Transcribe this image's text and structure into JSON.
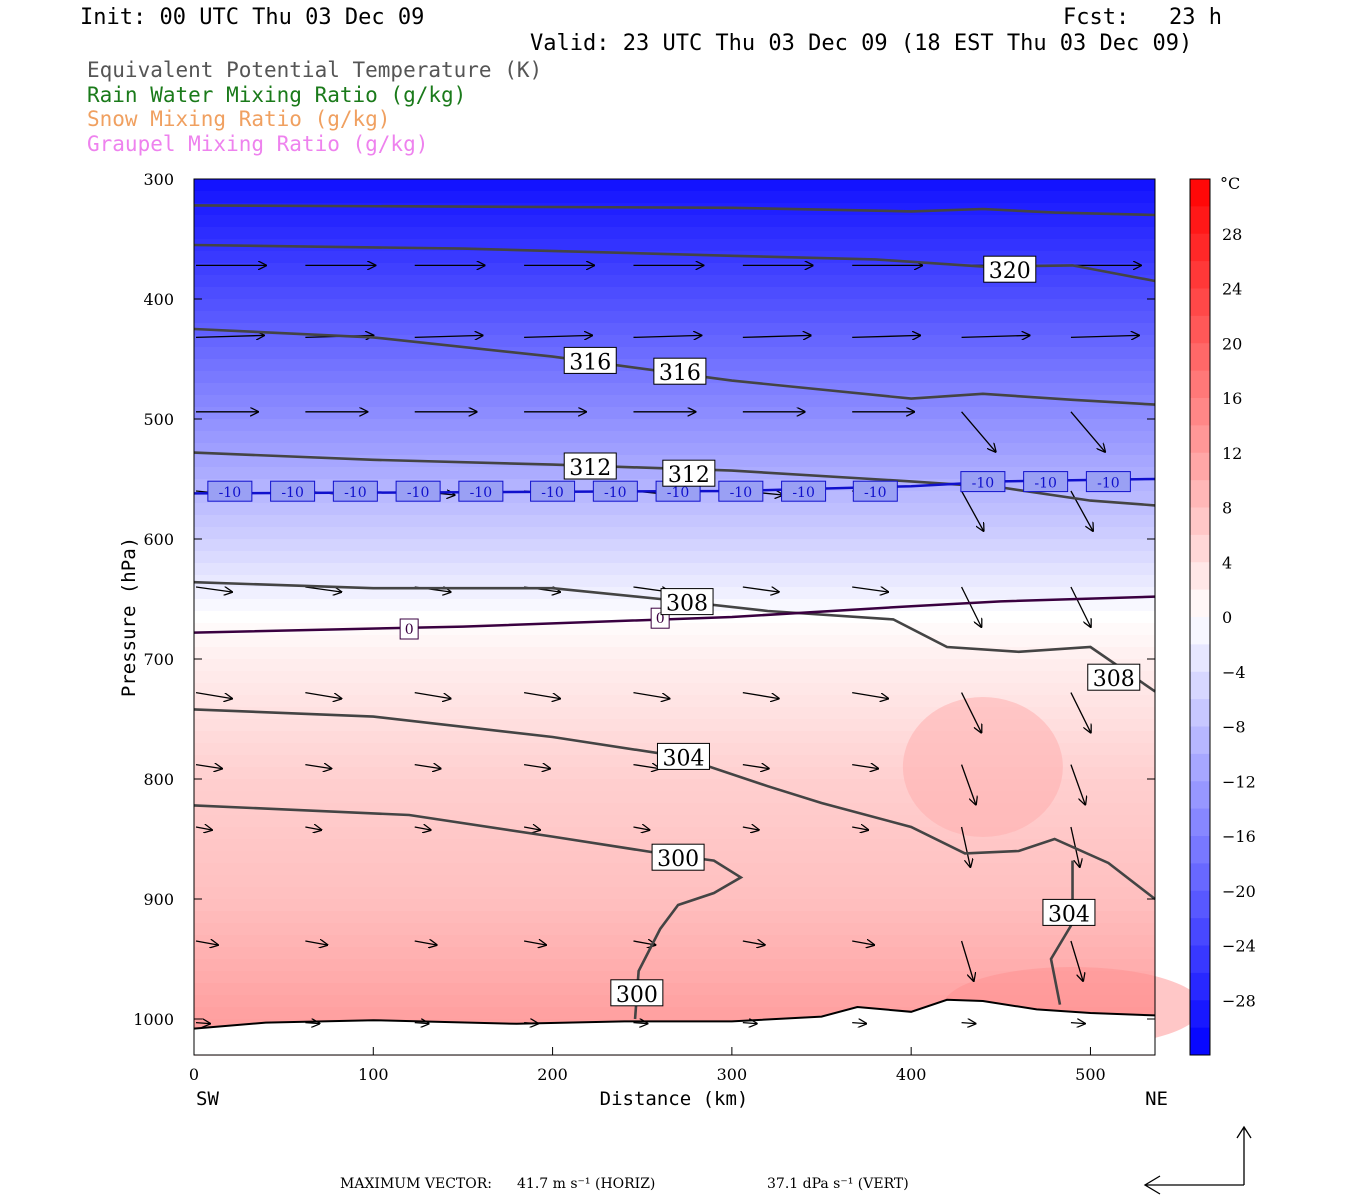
{
  "header": {
    "init": "Init: 00 UTC Thu 03 Dec 09",
    "fcst": "Fcst:   23 h",
    "valid": "Valid: 23 UTC Thu 03 Dec 09 (18 EST Thu 03 Dec 09)"
  },
  "fields": [
    {
      "label": "Equivalent Potential Temperature (K)",
      "color": "#555555"
    },
    {
      "label": "Rain Water Mixing Ratio (g/kg)",
      "color": "#1a7a1a"
    },
    {
      "label": "Snow Mixing Ratio (g/kg)",
      "color": "#f0a060"
    },
    {
      "label": "Graupel Mixing Ratio (g/kg)",
      "color": "#ee82ee"
    }
  ],
  "chart_data": {
    "type": "heatmap",
    "xlabel": "Distance (km)",
    "ylabel": "Pressure (hPa)",
    "xlim": [
      0,
      536
    ],
    "ylim": [
      1030,
      300
    ],
    "x_ticks": [
      "0",
      "100",
      "200",
      "300",
      "400",
      "500"
    ],
    "y_ticks": [
      "300",
      "400",
      "500",
      "600",
      "700",
      "800",
      "900",
      "1000"
    ],
    "x_end_left": "SW",
    "x_end_right": "NE",
    "colorbar": {
      "unit": "°C",
      "ticks": [
        "28",
        "24",
        "20",
        "16",
        "12",
        "8",
        "4",
        "0",
        "−4",
        "−8",
        "−12",
        "−16",
        "−20",
        "−24",
        "−28"
      ],
      "min": -32,
      "max": 32
    },
    "temperature_profile": [
      {
        "p": 300,
        "t": -30
      },
      {
        "p": 400,
        "t": -22
      },
      {
        "p": 500,
        "t": -14
      },
      {
        "p": 600,
        "t": -6
      },
      {
        "p": 665,
        "t": 0
      },
      {
        "p": 700,
        "t": 2
      },
      {
        "p": 800,
        "t": 6
      },
      {
        "p": 900,
        "t": 8
      },
      {
        "p": 1000,
        "t": 12
      }
    ],
    "isotherm_labels": [
      "-10",
      "0"
    ],
    "theta_e_labels": [
      {
        "text": "320",
        "x": 455,
        "p": 376
      },
      {
        "text": "316",
        "x": 221,
        "p": 452
      },
      {
        "text": "316",
        "x": 271,
        "p": 461
      },
      {
        "text": "312",
        "x": 221,
        "p": 540
      },
      {
        "text": "312",
        "x": 276,
        "p": 546
      },
      {
        "text": "308",
        "x": 275,
        "p": 653
      },
      {
        "text": "308",
        "x": 513,
        "p": 716
      },
      {
        "text": "304",
        "x": 273,
        "p": 782
      },
      {
        "text": "304",
        "x": 488,
        "p": 912
      },
      {
        "text": "300",
        "x": 270,
        "p": 866
      },
      {
        "text": "300",
        "x": 247,
        "p": 979
      }
    ]
  },
  "footer": {
    "max_vector": "MAXIMUM VECTOR:",
    "horiz_value": "41.7 m s⁻¹ (HORIZ)",
    "vert_value": "37.1 dPa s⁻¹ (VERT)"
  }
}
